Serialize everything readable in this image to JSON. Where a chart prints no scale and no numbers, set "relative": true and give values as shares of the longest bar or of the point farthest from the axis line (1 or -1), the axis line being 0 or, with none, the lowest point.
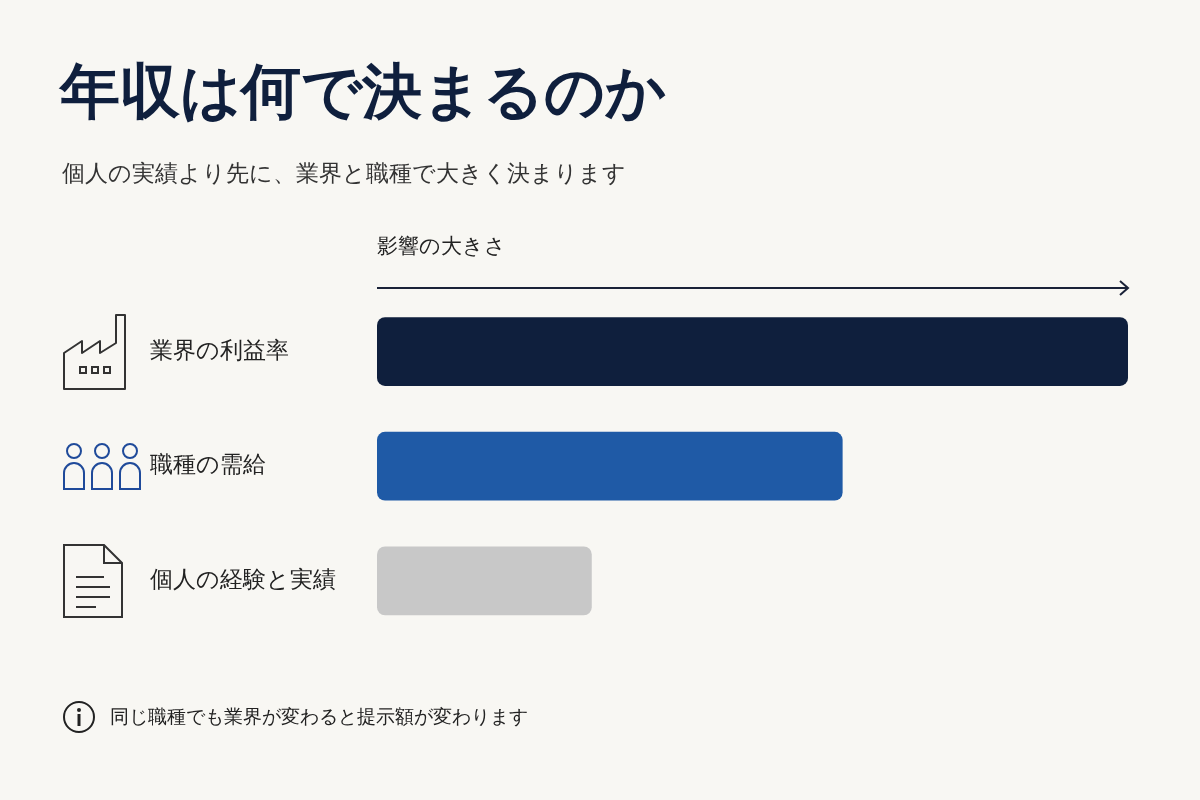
{
  "chart_data": {
    "type": "bar",
    "orientation": "horizontal",
    "relative": true,
    "title": "年収は何で決まるのか",
    "subtitle": "個人の実績より先に、業界と職種で大きく決まります",
    "xlabel": "影響の大きさ",
    "categories": [
      "業界の利益率",
      "職種の需給",
      "個人の経験と実績"
    ],
    "values": [
      1,
      0.62,
      0.286
    ],
    "colors": [
      "#0f1f3d",
      "#1f5aa6",
      "#c8c8c8"
    ],
    "annotations": [
      "同じ職種でも業界が変わると提示額が変わります"
    ],
    "grid": false,
    "legend": false
  }
}
